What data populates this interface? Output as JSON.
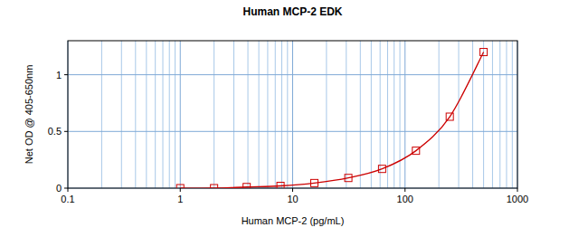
{
  "chart_data": {
    "type": "line",
    "title": "Human MCP-2 EDK",
    "x_label": "Human MCP-2 (pg/mL)",
    "y_label": "Net OD @ 405-650nm",
    "x": [
      1.0,
      2.0,
      3.9,
      7.8,
      15.6,
      31.3,
      62.5,
      125,
      250,
      500
    ],
    "values": [
      0.0,
      0.0,
      0.01,
      0.02,
      0.045,
      0.09,
      0.17,
      0.33,
      0.63,
      1.2
    ],
    "color": "#cc0000",
    "marker": "square",
    "line_style": "solid",
    "log": "x",
    "grid": true,
    "xlim": [
      0.1,
      1000
    ],
    "xticks": [
      0.1,
      1,
      10,
      100,
      1000
    ],
    "ylim": [
      0,
      1.3
    ],
    "yticks": [
      0,
      0.5,
      1
    ]
  }
}
